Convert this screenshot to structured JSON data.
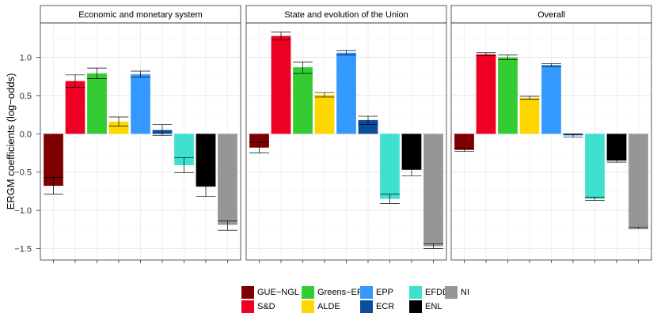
{
  "chart_data": {
    "type": "bar",
    "ylabel": "ERGM coefficients (log−odds)",
    "ylim": [
      -1.65,
      1.45
    ],
    "yticks": [
      -1.5,
      -1.0,
      -0.5,
      0.0,
      0.5,
      1.0
    ],
    "ytick_labels": [
      "−1.5",
      "−1.0",
      "−0.5",
      "0.0",
      "0.5",
      "1.0"
    ],
    "categories": [
      "GUE−NGL",
      "S&D",
      "Greens−EFA",
      "ALDE",
      "EPP",
      "ECR",
      "EFDD",
      "ENL",
      "NI"
    ],
    "colors": [
      "#7f0000",
      "#ee0022",
      "#33cc33",
      "#ffd700",
      "#3399ff",
      "#0a4d9a",
      "#40e0d0",
      "#000000",
      "#969696"
    ],
    "panels": [
      {
        "title": "Economic and monetary system",
        "values": [
          -0.68,
          0.69,
          0.79,
          0.16,
          0.78,
          0.05,
          -0.41,
          -0.69,
          -1.19
        ],
        "err_lo": [
          -0.79,
          0.61,
          0.72,
          0.1,
          0.74,
          -0.02,
          -0.51,
          -0.82,
          -1.26
        ],
        "err_hi": [
          -0.57,
          0.77,
          0.86,
          0.22,
          0.82,
          0.12,
          -0.31,
          -0.57,
          -1.14
        ]
      },
      {
        "title": "State and evolution of the Union",
        "values": [
          -0.18,
          1.28,
          0.87,
          0.51,
          1.06,
          0.18,
          -0.85,
          -0.47,
          -1.47
        ],
        "err_lo": [
          -0.25,
          1.23,
          0.79,
          0.48,
          1.03,
          0.12,
          -0.91,
          -0.55,
          -1.5
        ],
        "err_hi": [
          -0.11,
          1.33,
          0.94,
          0.54,
          1.09,
          0.23,
          -0.79,
          -0.4,
          -1.44
        ]
      },
      {
        "title": "Overall",
        "values": [
          -0.21,
          1.04,
          1.0,
          0.47,
          0.9,
          -0.02,
          -0.85,
          -0.35,
          -1.23
        ],
        "err_lo": [
          -0.23,
          1.02,
          0.97,
          0.45,
          0.88,
          -0.04,
          -0.87,
          -0.37,
          -1.24
        ],
        "err_hi": [
          -0.19,
          1.06,
          1.03,
          0.49,
          0.92,
          0.0,
          -0.83,
          -0.33,
          -1.22
        ]
      }
    ],
    "legend": [
      {
        "label": "GUE−NGL",
        "color": "#7f0000"
      },
      {
        "label": "S&D",
        "color": "#ee0022"
      },
      {
        "label": "Greens−EFA",
        "color": "#33cc33"
      },
      {
        "label": "ALDE",
        "color": "#ffd700"
      },
      {
        "label": "EPP",
        "color": "#3399ff"
      },
      {
        "label": "ECR",
        "color": "#0a4d9a"
      },
      {
        "label": "EFDD",
        "color": "#40e0d0"
      },
      {
        "label": "ENL",
        "color": "#000000"
      },
      {
        "label": "NI",
        "color": "#969696"
      }
    ]
  }
}
